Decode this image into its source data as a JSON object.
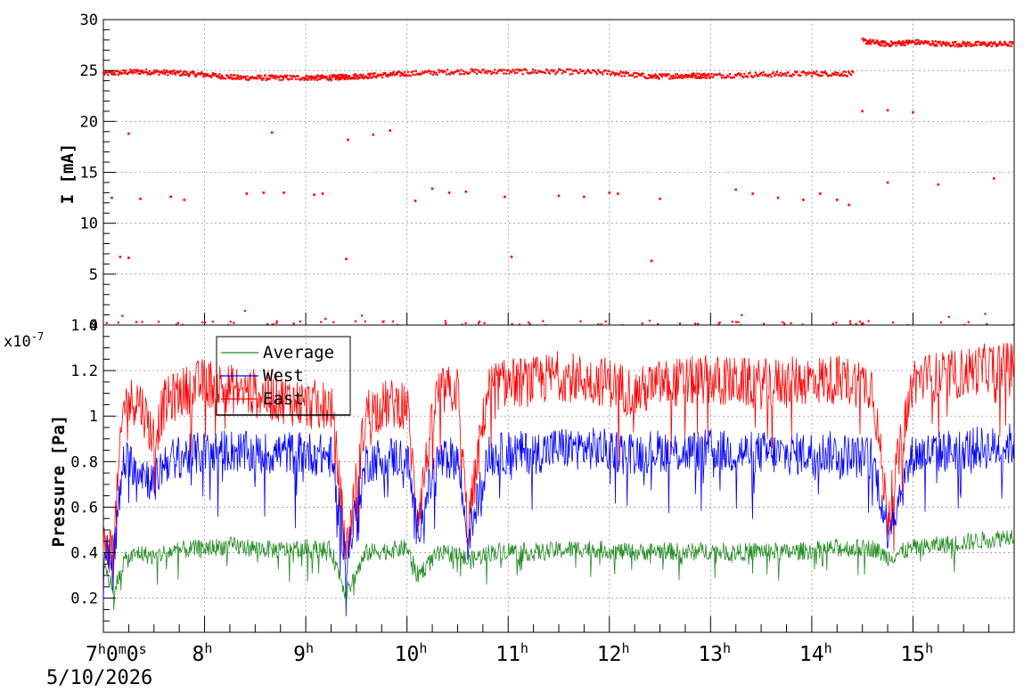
{
  "chart_data": [
    {
      "type": "scatter",
      "panel": "top",
      "ylabel": "I [mA]",
      "ylim": [
        0,
        30
      ],
      "xlim_hours": [
        7,
        16
      ],
      "yticks": [
        "0",
        "5",
        "10",
        "15",
        "20",
        "25",
        "30"
      ],
      "grid": true,
      "series": [
        {
          "color": "#ff0000",
          "segments": [
            {
              "x": [
                "7:00",
                "7:20",
                "7:40",
                "8:00",
                "8:20",
                "8:40",
                "9:00",
                "9:15",
                "9:25",
                "9:40",
                "10:00",
                "10:30",
                "11:00",
                "11:30",
                "12:00",
                "12:25",
                "12:45",
                "13:00",
                "13:30",
                "14:00",
                "14:25"
              ],
              "y": [
                24.7,
                24.9,
                24.8,
                24.6,
                24.3,
                24.3,
                24.3,
                24.3,
                24.4,
                24.5,
                24.7,
                24.9,
                24.9,
                24.9,
                24.8,
                24.4,
                24.5,
                24.5,
                24.6,
                24.7,
                24.7
              ]
            },
            {
              "x": [
                "14:30",
                "14:45",
                "15:00",
                "15:20",
                "15:40",
                "16:00"
              ],
              "y": [
                27.9,
                27.6,
                27.8,
                27.6,
                27.6,
                27.6
              ]
            }
          ],
          "outliers": [
            {
              "x": "7:05",
              "y": 12.5
            },
            {
              "x": "7:10",
              "y": 6.7
            },
            {
              "x": "7:15",
              "y": 6.6
            },
            {
              "x": "7:15",
              "y": 18.8
            },
            {
              "x": "7:22",
              "y": 12.4
            },
            {
              "x": "7:40",
              "y": 12.6
            },
            {
              "x": "7:48",
              "y": 12.3
            },
            {
              "x": "8:25",
              "y": 12.9
            },
            {
              "x": "8:35",
              "y": 13.0
            },
            {
              "x": "8:40",
              "y": 18.9
            },
            {
              "x": "8:47",
              "y": 13.0
            },
            {
              "x": "9:05",
              "y": 12.8
            },
            {
              "x": "9:10",
              "y": 12.9
            },
            {
              "x": "9:24",
              "y": 6.5
            },
            {
              "x": "9:25",
              "y": 18.2
            },
            {
              "x": "9:40",
              "y": 18.7
            },
            {
              "x": "9:50",
              "y": 19.1
            },
            {
              "x": "10:05",
              "y": 12.2
            },
            {
              "x": "10:15",
              "y": 13.4
            },
            {
              "x": "10:25",
              "y": 13.0
            },
            {
              "x": "10:35",
              "y": 13.1
            },
            {
              "x": "10:58",
              "y": 12.6
            },
            {
              "x": "11:02",
              "y": 6.7
            },
            {
              "x": "11:30",
              "y": 12.7
            },
            {
              "x": "11:45",
              "y": 12.6
            },
            {
              "x": "12:00",
              "y": 13.0
            },
            {
              "x": "12:05",
              "y": 12.9
            },
            {
              "x": "12:25",
              "y": 6.3
            },
            {
              "x": "12:30",
              "y": 12.4
            },
            {
              "x": "13:15",
              "y": 13.3
            },
            {
              "x": "13:25",
              "y": 12.9
            },
            {
              "x": "13:40",
              "y": 12.5
            },
            {
              "x": "13:55",
              "y": 12.3
            },
            {
              "x": "14:05",
              "y": 12.9
            },
            {
              "x": "14:15",
              "y": 12.3
            },
            {
              "x": "14:22",
              "y": 11.8
            },
            {
              "x": "14:30",
              "y": 21.0
            },
            {
              "x": "14:45",
              "y": 21.1
            },
            {
              "x": "15:00",
              "y": 20.9
            },
            {
              "x": "14:45",
              "y": 14.0
            },
            {
              "x": "15:15",
              "y": 13.8
            },
            {
              "x": "15:48",
              "y": 14.4
            }
          ]
        }
      ]
    },
    {
      "type": "line",
      "panel": "bottom",
      "ylabel": "Pressure [Pa]",
      "ylim": [
        0.05,
        1.4
      ],
      "yticks": [
        "0.2",
        "0.4",
        "0.6",
        "0.8",
        "1",
        "1.2",
        "1.4"
      ],
      "exponent_label": "x10",
      "exponent_power": "-7",
      "grid": true,
      "legend_position": "top-left",
      "x_ticks": [
        "7",
        "8",
        "9",
        "10",
        "11",
        "12",
        "13",
        "14",
        "15"
      ],
      "x_axis_start": "7:00:00",
      "x_axis_date": "5/10/2026",
      "x_hours": [
        7.0,
        7.1,
        7.2,
        7.35,
        7.5,
        7.6,
        7.75,
        8.0,
        8.25,
        8.5,
        8.75,
        9.0,
        9.25,
        9.4,
        9.6,
        9.8,
        10.0,
        10.1,
        10.3,
        10.5,
        10.6,
        10.8,
        11.0,
        11.25,
        11.5,
        11.75,
        12.0,
        12.25,
        12.5,
        12.75,
        13.0,
        13.25,
        13.5,
        13.75,
        14.0,
        14.25,
        14.45,
        14.6,
        14.75,
        15.0,
        15.2,
        15.4,
        15.6,
        15.8,
        16.0
      ],
      "series": [
        {
          "name": "Average",
          "color": "#228b22",
          "values": [
            0.38,
            0.22,
            0.36,
            0.4,
            0.38,
            0.4,
            0.41,
            0.42,
            0.43,
            0.42,
            0.41,
            0.42,
            0.41,
            0.22,
            0.4,
            0.41,
            0.42,
            0.3,
            0.39,
            0.4,
            0.36,
            0.4,
            0.41,
            0.4,
            0.41,
            0.42,
            0.41,
            0.4,
            0.41,
            0.4,
            0.41,
            0.4,
            0.41,
            0.4,
            0.41,
            0.42,
            0.42,
            0.42,
            0.38,
            0.42,
            0.43,
            0.44,
            0.45,
            0.46,
            0.48
          ]
        },
        {
          "name": "West",
          "color": "#0000ff",
          "values": [
            0.4,
            0.38,
            0.8,
            0.78,
            0.7,
            0.8,
            0.82,
            0.84,
            0.85,
            0.83,
            0.84,
            0.84,
            0.82,
            0.37,
            0.8,
            0.82,
            0.82,
            0.5,
            0.8,
            0.82,
            0.45,
            0.82,
            0.84,
            0.84,
            0.86,
            0.86,
            0.85,
            0.84,
            0.85,
            0.84,
            0.85,
            0.84,
            0.84,
            0.83,
            0.84,
            0.84,
            0.82,
            0.82,
            0.5,
            0.83,
            0.84,
            0.85,
            0.86,
            0.86,
            0.88
          ]
        },
        {
          "name": "East",
          "color": "#ff0000",
          "values": [
            0.42,
            0.42,
            1.05,
            1.08,
            0.9,
            1.05,
            1.1,
            1.15,
            1.12,
            1.1,
            1.08,
            1.05,
            1.05,
            0.4,
            1.02,
            1.05,
            1.06,
            0.55,
            1.1,
            1.12,
            0.5,
            1.12,
            1.15,
            1.15,
            1.18,
            1.16,
            1.15,
            1.1,
            1.14,
            1.15,
            1.16,
            1.15,
            1.14,
            1.15,
            1.16,
            1.16,
            1.15,
            1.14,
            0.55,
            1.16,
            1.17,
            1.18,
            1.2,
            1.22,
            1.24
          ]
        }
      ]
    }
  ]
}
